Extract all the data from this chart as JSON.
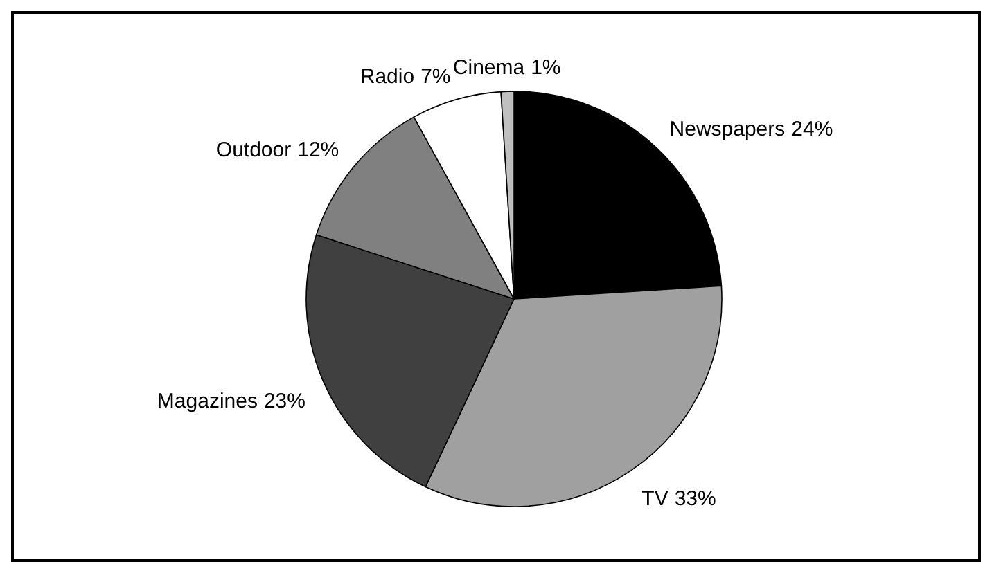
{
  "chart_data": {
    "type": "pie",
    "categories": [
      "Newspapers",
      "TV",
      "Magazines",
      "Outdoor",
      "Radio",
      "Cinema"
    ],
    "values": [
      24,
      33,
      23,
      12,
      7,
      1
    ],
    "colors": [
      "#000000",
      "#a0a0a0",
      "#404040",
      "#808080",
      "#ffffff",
      "#c0c0c0"
    ],
    "value_labels": [
      "24%",
      "33%",
      "23%",
      "12%",
      "7%",
      "1%"
    ]
  }
}
